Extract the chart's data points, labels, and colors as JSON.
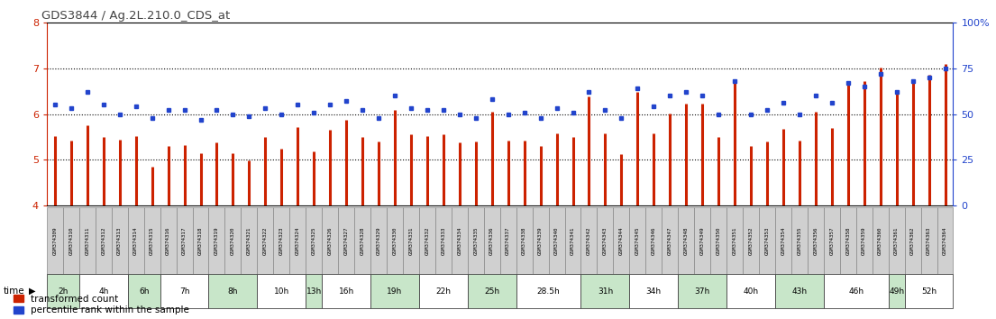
{
  "title": "GDS3844 / Ag.2L.210.0_CDS_at",
  "samples": [
    "GSM374309",
    "GSM374310",
    "GSM374311",
    "GSM374312",
    "GSM374313",
    "GSM374314",
    "GSM374315",
    "GSM374316",
    "GSM374317",
    "GSM374318",
    "GSM374319",
    "GSM374320",
    "GSM374321",
    "GSM374322",
    "GSM374323",
    "GSM374324",
    "GSM374325",
    "GSM374326",
    "GSM374327",
    "GSM374328",
    "GSM374329",
    "GSM374330",
    "GSM374331",
    "GSM374332",
    "GSM374333",
    "GSM374334",
    "GSM374335",
    "GSM374336",
    "GSM374337",
    "GSM374338",
    "GSM374339",
    "GSM374340",
    "GSM374341",
    "GSM374342",
    "GSM374343",
    "GSM374344",
    "GSM374345",
    "GSM374346",
    "GSM374347",
    "GSM374348",
    "GSM374349",
    "GSM374350",
    "GSM374351",
    "GSM374352",
    "GSM374353",
    "GSM374354",
    "GSM374355",
    "GSM374356",
    "GSM374357",
    "GSM374358",
    "GSM374359",
    "GSM374360",
    "GSM374361",
    "GSM374362",
    "GSM374363",
    "GSM374364"
  ],
  "transformed_count": [
    5.52,
    5.42,
    5.75,
    5.5,
    5.45,
    5.52,
    4.85,
    5.3,
    5.33,
    5.14,
    5.38,
    5.15,
    4.98,
    5.5,
    5.25,
    5.72,
    5.18,
    5.65,
    5.88,
    5.5,
    5.4,
    6.08,
    5.55,
    5.52,
    5.55,
    5.38,
    5.4,
    6.05,
    5.42,
    5.43,
    5.3,
    5.58,
    5.5,
    6.38,
    5.58,
    5.12,
    6.48,
    5.58,
    6.02,
    6.22,
    6.22,
    5.5,
    6.75,
    5.3,
    5.4,
    5.68,
    5.42,
    6.05,
    5.7,
    6.72,
    6.72,
    7.02,
    6.45,
    6.72,
    6.85,
    7.1
  ],
  "percentile_rank": [
    55,
    53,
    62,
    55,
    50,
    54,
    48,
    52,
    52,
    47,
    52,
    50,
    49,
    53,
    50,
    55,
    51,
    55,
    57,
    52,
    48,
    60,
    53,
    52,
    52,
    50,
    48,
    58,
    50,
    51,
    48,
    53,
    51,
    62,
    52,
    48,
    64,
    54,
    60,
    62,
    60,
    50,
    68,
    50,
    52,
    56,
    50,
    60,
    56,
    67,
    65,
    72,
    62,
    68,
    70,
    75
  ],
  "time_groups": [
    {
      "label": "2h",
      "start": 0,
      "end": 2,
      "color": "#c8e6c9"
    },
    {
      "label": "4h",
      "start": 2,
      "end": 5,
      "color": "#ffffff"
    },
    {
      "label": "6h",
      "start": 5,
      "end": 7,
      "color": "#c8e6c9"
    },
    {
      "label": "7h",
      "start": 7,
      "end": 10,
      "color": "#ffffff"
    },
    {
      "label": "8h",
      "start": 10,
      "end": 13,
      "color": "#c8e6c9"
    },
    {
      "label": "10h",
      "start": 13,
      "end": 16,
      "color": "#ffffff"
    },
    {
      "label": "13h",
      "start": 16,
      "end": 17,
      "color": "#c8e6c9"
    },
    {
      "label": "16h",
      "start": 17,
      "end": 20,
      "color": "#ffffff"
    },
    {
      "label": "19h",
      "start": 20,
      "end": 23,
      "color": "#c8e6c9"
    },
    {
      "label": "22h",
      "start": 23,
      "end": 26,
      "color": "#ffffff"
    },
    {
      "label": "25h",
      "start": 26,
      "end": 29,
      "color": "#c8e6c9"
    },
    {
      "label": "28.5h",
      "start": 29,
      "end": 33,
      "color": "#ffffff"
    },
    {
      "label": "31h",
      "start": 33,
      "end": 36,
      "color": "#c8e6c9"
    },
    {
      "label": "34h",
      "start": 36,
      "end": 39,
      "color": "#ffffff"
    },
    {
      "label": "37h",
      "start": 39,
      "end": 42,
      "color": "#c8e6c9"
    },
    {
      "label": "40h",
      "start": 42,
      "end": 45,
      "color": "#ffffff"
    },
    {
      "label": "43h",
      "start": 45,
      "end": 48,
      "color": "#c8e6c9"
    },
    {
      "label": "46h",
      "start": 48,
      "end": 52,
      "color": "#ffffff"
    },
    {
      "label": "49h",
      "start": 52,
      "end": 53,
      "color": "#c8e6c9"
    },
    {
      "label": "52h",
      "start": 53,
      "end": 56,
      "color": "#ffffff"
    }
  ],
  "ylim": [
    4.0,
    8.0
  ],
  "yticks_left": [
    4,
    5,
    6,
    7,
    8
  ],
  "yticks_right": [
    0,
    25,
    50,
    75,
    100
  ],
  "ytick_dotted": [
    5,
    6,
    7
  ],
  "bar_color": "#cc2200",
  "dot_color": "#2244cc",
  "title_color": "#444444",
  "axis_color_left": "#cc2200",
  "axis_color_right": "#2244cc",
  "bar_bottom": 4.0,
  "sample_box_color": "#d0d0d0",
  "sample_box_edge": "#888888"
}
